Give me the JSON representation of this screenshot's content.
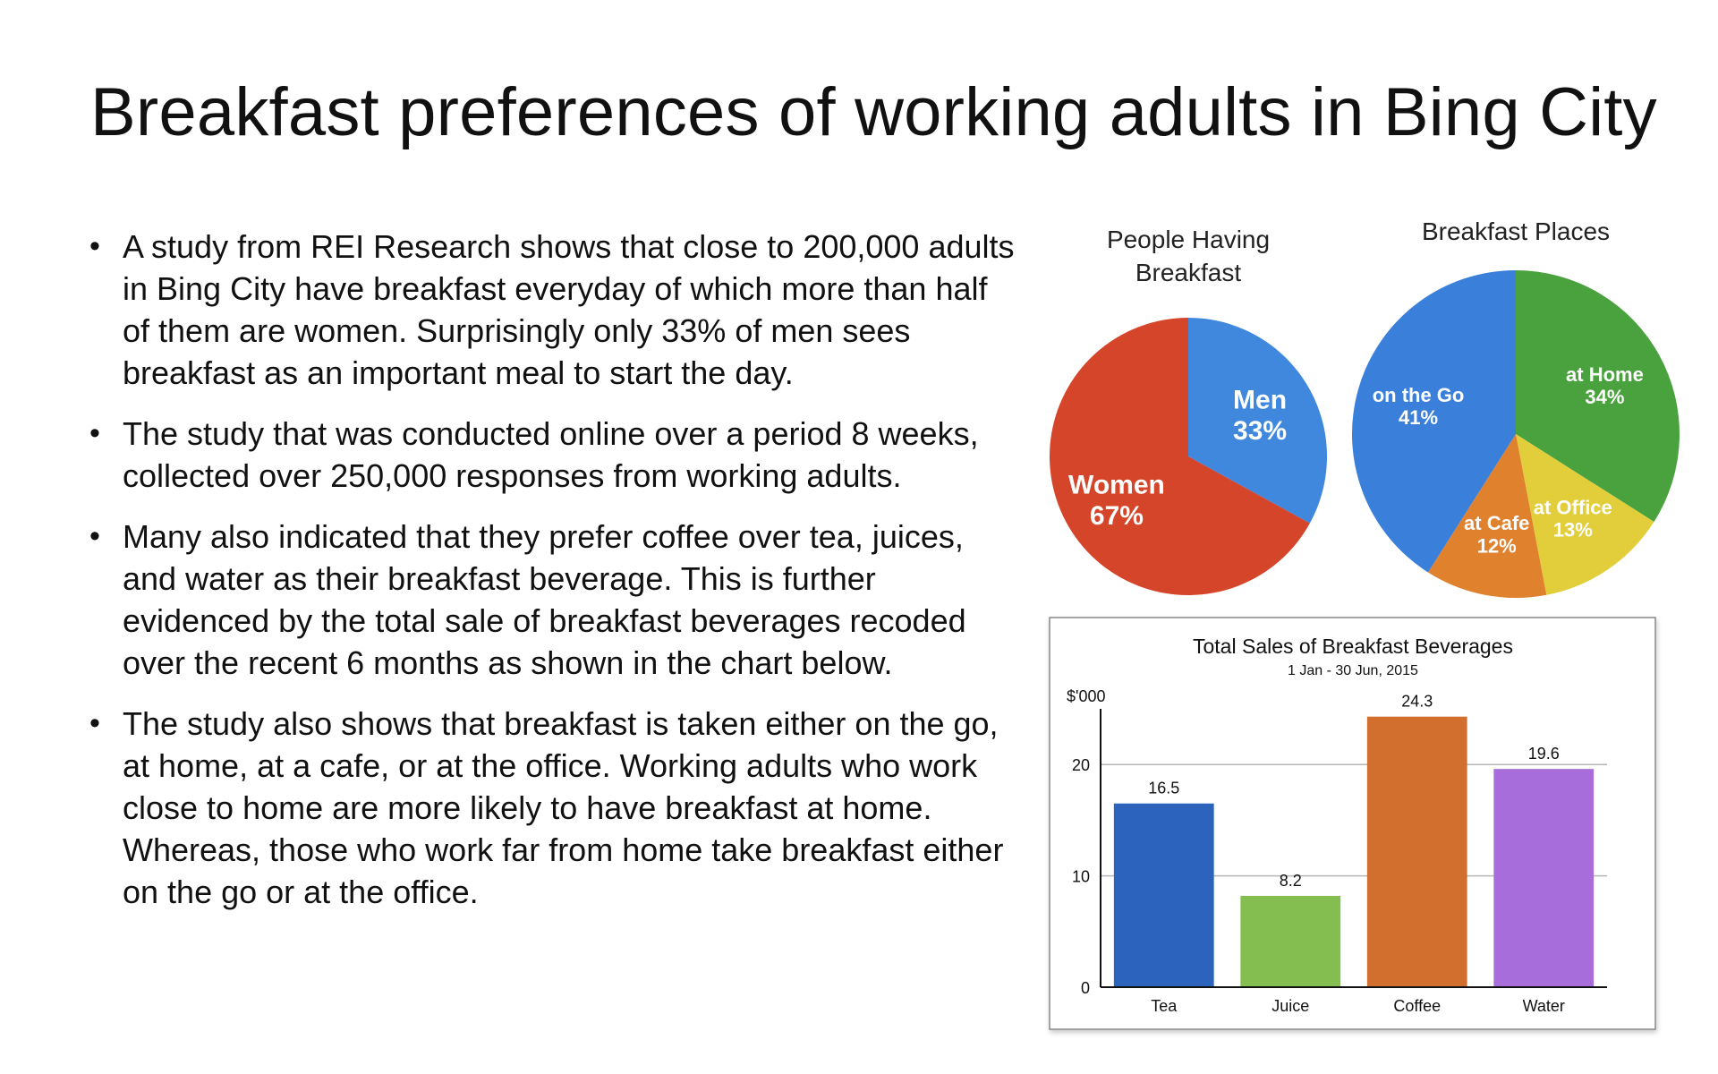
{
  "slide": {
    "title": "Breakfast preferences of working adults in Bing City",
    "bullets": [
      "A study from REI Research shows that close to 200,000 adults in Bing City have breakfast everyday of which more than half of them are women. Surprisingly only 33% of men sees breakfast as an important meal to start the day.",
      "The study that was conducted online over a period 8 weeks, collected over 250,000 responses from working adults.",
      "Many also indicated that they prefer coffee over tea, juices, and water as their breakfast beverage. This is further evidenced by the total sale of breakfast beverages recoded over the recent 6 months as shown in the chart below.",
      "The study also shows that breakfast is taken either on the go, at home, at a cafe, or at the office. Working adults who work close to home are more likely to have breakfast at home. Whereas, those who work far from home take breakfast either on the go or at the office."
    ]
  },
  "chart_data": [
    {
      "type": "pie",
      "title_lines": [
        "People Having",
        "Breakfast"
      ],
      "slices": [
        {
          "label": "Men",
          "value": 33,
          "value_label": "33%",
          "color": "#3f88de"
        },
        {
          "label": "Women",
          "value": 67,
          "value_label": "67%",
          "color": "#d5452a"
        }
      ]
    },
    {
      "type": "pie",
      "title_lines": [
        "Breakfast Places"
      ],
      "slices": [
        {
          "label": "at Home",
          "value": 34,
          "value_label": "34%",
          "color": "#4aa23e"
        },
        {
          "label": "at Office",
          "value": 13,
          "value_label": "13%",
          "color": "#e2cd3a"
        },
        {
          "label": "at Cafe",
          "value": 12,
          "value_label": "12%",
          "color": "#e0812e"
        },
        {
          "label": "on the Go",
          "value": 41,
          "value_label": "41%",
          "color": "#3a7fda"
        }
      ]
    },
    {
      "type": "bar",
      "title": "Total Sales of Breakfast Beverages",
      "subtitle": "1 Jan - 30 Jun, 2015",
      "ylabel": "$'000",
      "categories": [
        "Tea",
        "Juice",
        "Coffee",
        "Water"
      ],
      "values": [
        16.5,
        8.2,
        24.3,
        19.6
      ],
      "value_labels": [
        "16.5",
        "8.2",
        "24.3",
        "19.6"
      ],
      "colors": [
        "#2c63bd",
        "#84be50",
        "#d26f2e",
        "#a66ddb"
      ],
      "yticks": [
        0,
        10,
        20
      ],
      "ylim": [
        0,
        25
      ],
      "grid": true
    }
  ]
}
